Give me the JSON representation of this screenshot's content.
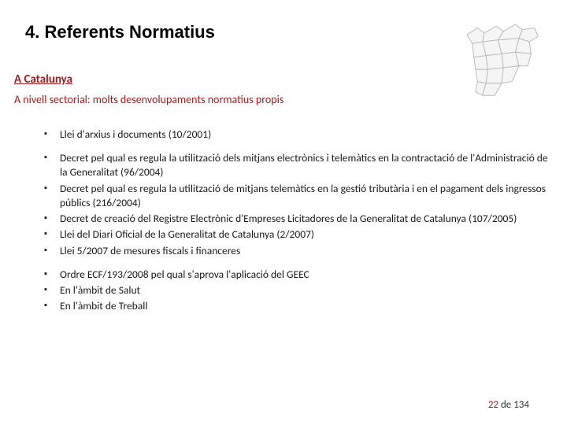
{
  "heading": "4. Referents Normatius",
  "subheading": {
    "text": "A Catalunya",
    "color": "#9e1b1b"
  },
  "tagline": {
    "text": "A nivell sectorial: molts desenvolupaments normatius propis",
    "color": "#9e1b1b"
  },
  "bullet_glyph": "▪",
  "groups": [
    {
      "items": [
        {
          "text": "Llei d'arxius i documents (10/2001)"
        }
      ]
    },
    {
      "items": [
        {
          "text": "Decret pel qual es regula la utilització dels mitjans electrònics i telemàtics en la contractació de l'Administració de la Generalitat (96/2004)"
        },
        {
          "text": "Decret pel qual es regula la utilització de mitjans telemàtics en la gestió tributària i en el pagament dels ingressos públics (216/2004)"
        },
        {
          "text": "Decret de creació del Registre Electrònic d'Empreses Licitadores de la Generalitat de Catalunya (107/2005)"
        },
        {
          "text": "Llei del Diari Oficial de la Generalitat de Catalunya (2/2007)"
        },
        {
          "text": "Llei 5/2007 de mesures fiscals i financeres"
        }
      ]
    },
    {
      "items": [
        {
          "text": "Ordre ECF/193/2008 pel qual s'aprova l'aplicació del GEEC"
        },
        {
          "text": "En l'àmbit de Salut"
        },
        {
          "text": "En l'àmbit de Treball"
        }
      ]
    }
  ],
  "page": {
    "current": "22",
    "sep": " de ",
    "total": "134",
    "current_color": "#9e1b1b",
    "rest_color": "#333333"
  },
  "map_style": {
    "stroke": "#bcbcbc",
    "fill": "#f5f5f5"
  },
  "text_color": "#1a1a1a"
}
